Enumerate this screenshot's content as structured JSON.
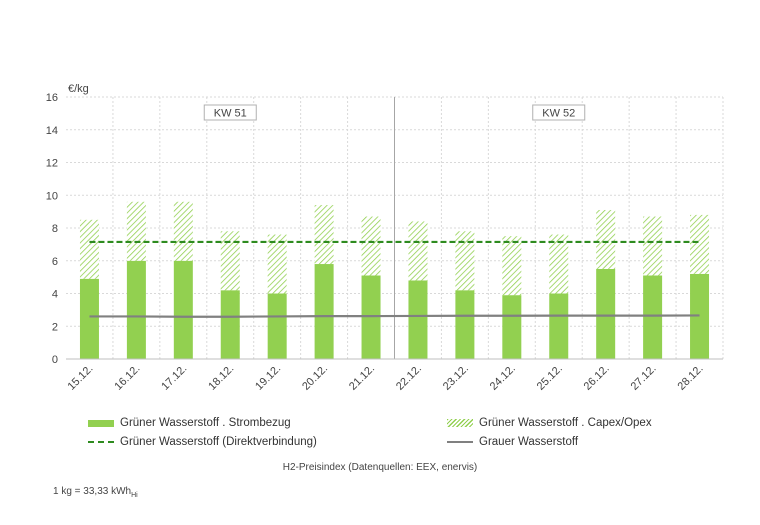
{
  "chart_data": {
    "type": "bar",
    "ylabel": "€/kg",
    "ylim": [
      0,
      16
    ],
    "yticks": [
      0,
      2,
      4,
      6,
      8,
      10,
      12,
      14,
      16
    ],
    "grid": true,
    "categories": [
      "15.12.",
      "16.12.",
      "17.12.",
      "18.12.",
      "19.12.",
      "20.12.",
      "21.12.",
      "22.12.",
      "23.12.",
      "24.12.",
      "25.12.",
      "26.12.",
      "27.12.",
      "28.12."
    ],
    "series": [
      {
        "name": "Grüner Wasserstoff . Strombezug",
        "kind": "stacked-bar",
        "color": "#92d050",
        "values": [
          4.9,
          6.0,
          6.0,
          4.2,
          4.0,
          5.8,
          5.1,
          4.8,
          4.2,
          3.9,
          4.0,
          5.5,
          5.1,
          5.2
        ]
      },
      {
        "name": "Grüner Wasserstoff . Capex/Opex",
        "kind": "stacked-bar-hatched",
        "color": "#92d050",
        "values": [
          3.6,
          3.6,
          3.6,
          3.6,
          3.6,
          3.6,
          3.6,
          3.6,
          3.6,
          3.6,
          3.6,
          3.6,
          3.6,
          3.6
        ]
      },
      {
        "name": "Grüner Wasserstoff (Direktverbindung)",
        "kind": "dashed-line",
        "color": "#2e8b1f",
        "values": [
          7.15,
          7.15,
          7.15,
          7.15,
          7.15,
          7.15,
          7.15,
          7.15,
          7.15,
          7.15,
          7.15,
          7.15,
          7.15,
          7.15
        ]
      },
      {
        "name": "Grauer Wasserstoff",
        "kind": "line",
        "color": "#808080",
        "values": [
          2.6,
          2.6,
          2.58,
          2.58,
          2.6,
          2.62,
          2.62,
          2.63,
          2.64,
          2.64,
          2.65,
          2.65,
          2.65,
          2.66
        ]
      }
    ],
    "week_labels": [
      "KW 51",
      "KW 52"
    ],
    "title": "H2-Preisindex (Datenquellen: EEX, enervis)",
    "legend_position": "bottom"
  },
  "legend": {
    "item1": "Grüner Wasserstoff . Strombezug",
    "item2": "Grüner Wasserstoff . Capex/Opex",
    "item3": "Grüner Wasserstoff (Direktverbindung)",
    "item4": "Grauer Wasserstoff"
  },
  "caption": "H2-Preisindex (Datenquellen: EEX, enervis)",
  "footnote_main": "1 kg = 33,33 kWh",
  "footnote_sub": "Hi"
}
